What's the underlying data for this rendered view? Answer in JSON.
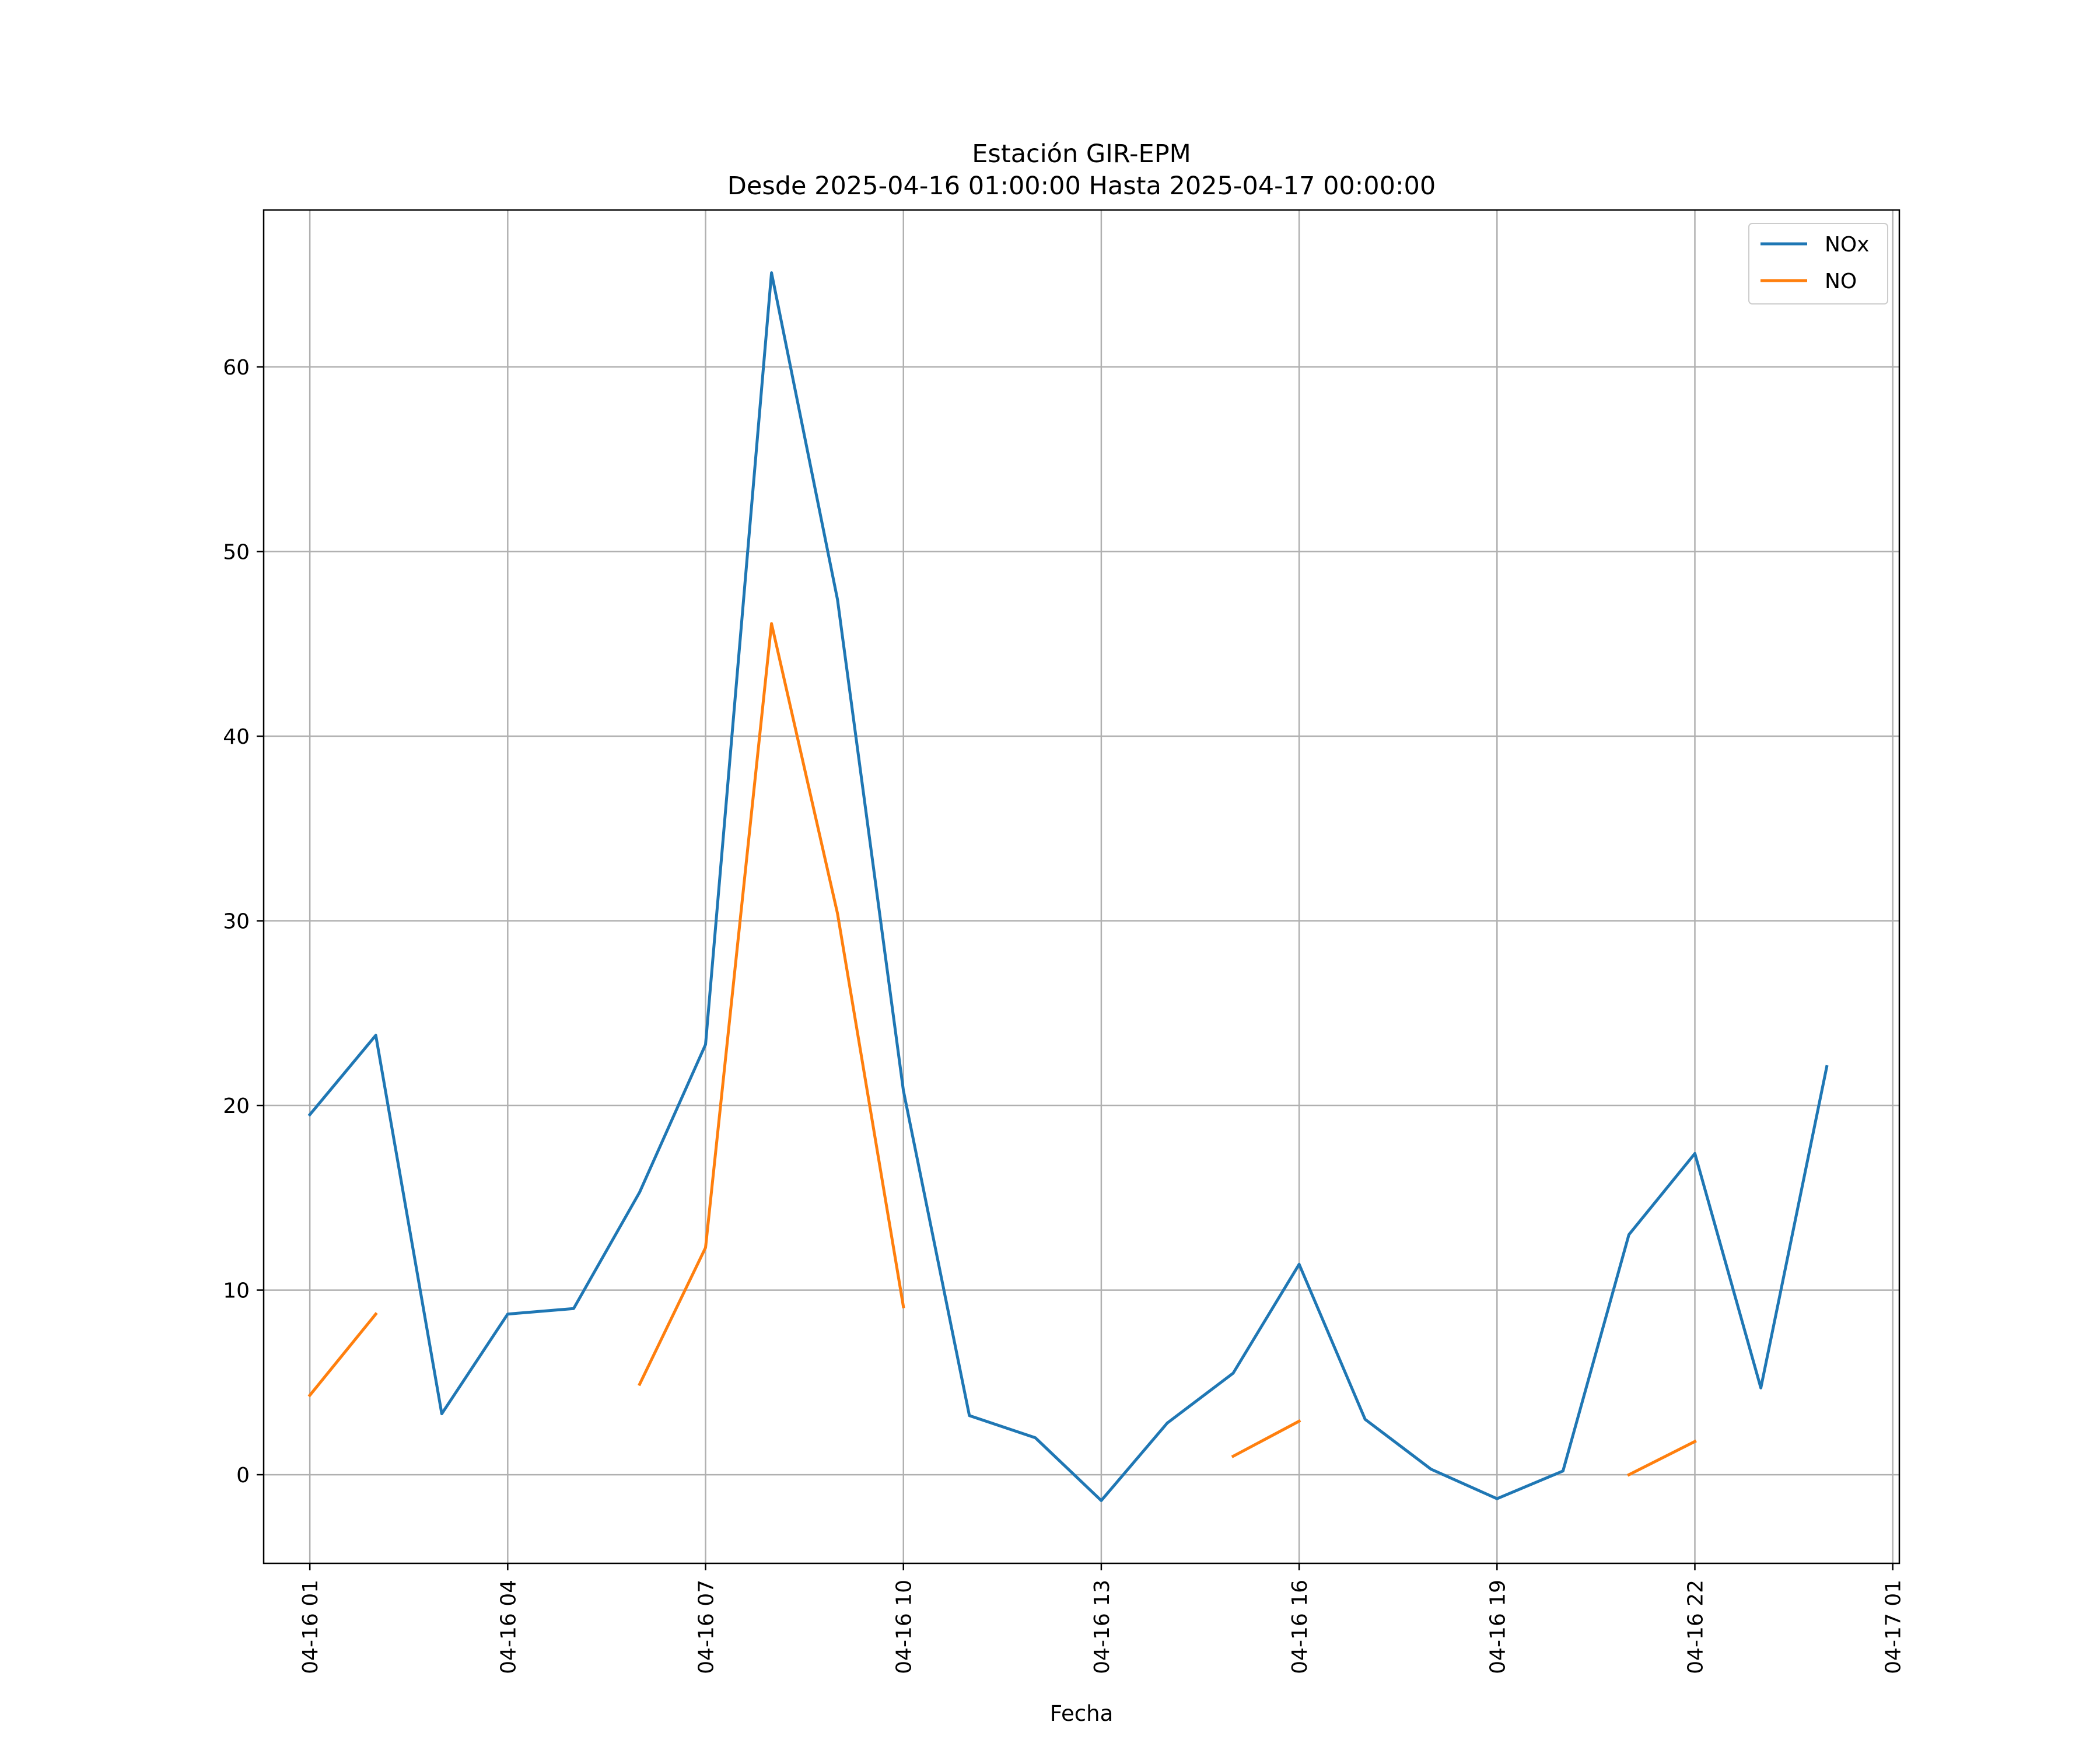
{
  "chart_data": {
    "type": "line",
    "title": "Estación GIR-EPM",
    "subtitle": "Desde 2025-04-16 01:00:00 Hasta 2025-04-17 00:00:00",
    "xlabel": "Fecha",
    "ylabel": "",
    "x": [
      "04-16 01",
      "04-16 02",
      "04-16 03",
      "04-16 04",
      "04-16 05",
      "04-16 06",
      "04-16 07",
      "04-16 08",
      "04-16 09",
      "04-16 10",
      "04-16 11",
      "04-16 12",
      "04-16 13",
      "04-16 14",
      "04-16 15",
      "04-16 16",
      "04-16 17",
      "04-16 18",
      "04-16 19",
      "04-16 20",
      "04-16 21",
      "04-16 22",
      "04-16 23",
      "04-17 00"
    ],
    "xlim": [
      "04-16 00:18",
      "04-17 01:06"
    ],
    "ylim": [
      -4.8,
      68.5
    ],
    "xticks": [
      "04-16 01",
      "04-16 04",
      "04-16 07",
      "04-16 10",
      "04-16 13",
      "04-16 16",
      "04-16 19",
      "04-16 22",
      "04-17 01"
    ],
    "yticks": [
      0,
      10,
      20,
      30,
      40,
      50,
      60
    ],
    "grid": true,
    "legend_position": "top-right",
    "series": [
      {
        "name": "NOx",
        "color": "#1f77b4",
        "values": [
          19.5,
          23.8,
          3.3,
          8.7,
          9.0,
          15.3,
          23.3,
          65.1,
          47.4,
          20.8,
          3.2,
          2.0,
          -1.4,
          2.8,
          5.5,
          11.4,
          3.0,
          0.3,
          -1.3,
          0.2,
          13.0,
          17.4,
          4.7,
          22.1
        ]
      },
      {
        "name": "NO",
        "color": "#ff7f0e",
        "values": [
          4.3,
          8.7,
          null,
          null,
          null,
          4.9,
          12.3,
          46.1,
          30.4,
          9.1,
          null,
          null,
          null,
          null,
          1.0,
          2.9,
          null,
          null,
          null,
          null,
          0.0,
          1.8,
          null,
          null
        ]
      }
    ]
  }
}
